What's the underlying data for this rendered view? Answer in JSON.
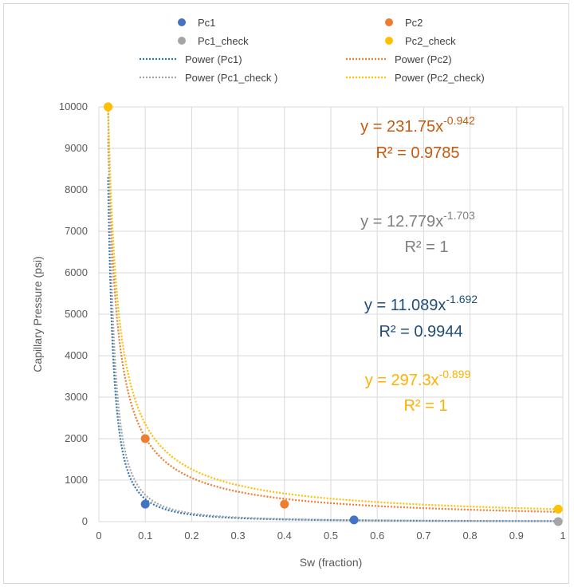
{
  "chart_data": {
    "type": "scatter",
    "title": "",
    "xlabel": "Sw (fraction)",
    "ylabel": "Capillary Pressure (psi)",
    "xlim": [
      0,
      1
    ],
    "ylim": [
      0,
      10000
    ],
    "x_ticks": [
      "0",
      "0.1",
      "0.2",
      "0.3",
      "0.4",
      "0.5",
      "0.6",
      "0.7",
      "0.8",
      "0.9",
      "1"
    ],
    "y_ticks": [
      "0",
      "1000",
      "2000",
      "3000",
      "4000",
      "5000",
      "6000",
      "7000",
      "8000",
      "9000",
      "10000"
    ],
    "grid": true,
    "legend_position": "top",
    "series": [
      {
        "name": "Pc1",
        "color": "#4472c4",
        "x": [
          0.1,
          0.55
        ],
        "y": [
          420,
          40
        ]
      },
      {
        "name": "Pc2",
        "color": "#ed7d31",
        "x": [
          0.02,
          0.1,
          0.4
        ],
        "y": [
          10000,
          2000,
          420
        ]
      },
      {
        "name": "Pc1_check",
        "color": "#a5a5a5",
        "x": [
          0.99
        ],
        "y": [
          0
        ]
      },
      {
        "name": "Pc2_check",
        "color": "#ffc000",
        "x": [
          0.02,
          0.99
        ],
        "y": [
          10000,
          300
        ]
      }
    ],
    "trendlines": [
      {
        "name": "Power (Pc1)",
        "color": "#2e75b6",
        "a": 11.089,
        "b": -1.692,
        "x_range": [
          0.02,
          0.99
        ]
      },
      {
        "name": "Power (Pc2)",
        "color": "#ed7d31",
        "a": 231.75,
        "b": -0.942,
        "x_range": [
          0.02,
          0.99
        ]
      },
      {
        "name": "Power (Pc1_check )",
        "color": "#a5a5a5",
        "a": 12.779,
        "b": -1.703,
        "x_range": [
          0.02,
          0.99
        ]
      },
      {
        "name": "Power (Pc2_check)",
        "color": "#ffc000",
        "a": 297.3,
        "b": -0.899,
        "x_range": [
          0.02,
          0.99
        ]
      }
    ],
    "equations": [
      {
        "coef": "y = 231.75x",
        "exp": "-0.942",
        "r2": "R² = 0.9785",
        "color": "#c55a11"
      },
      {
        "coef": "y = 12.779x",
        "exp": "-1.703",
        "r2": "R² = 1",
        "color": "#7f7f7f"
      },
      {
        "coef": "y = 11.089x",
        "exp": "-1.692",
        "r2": "R² = 0.9944",
        "color": "#1f4e79"
      },
      {
        "coef": "y = 297.3x",
        "exp": "-0.899",
        "r2": "R² = 1",
        "color": "#ffb000"
      }
    ]
  }
}
